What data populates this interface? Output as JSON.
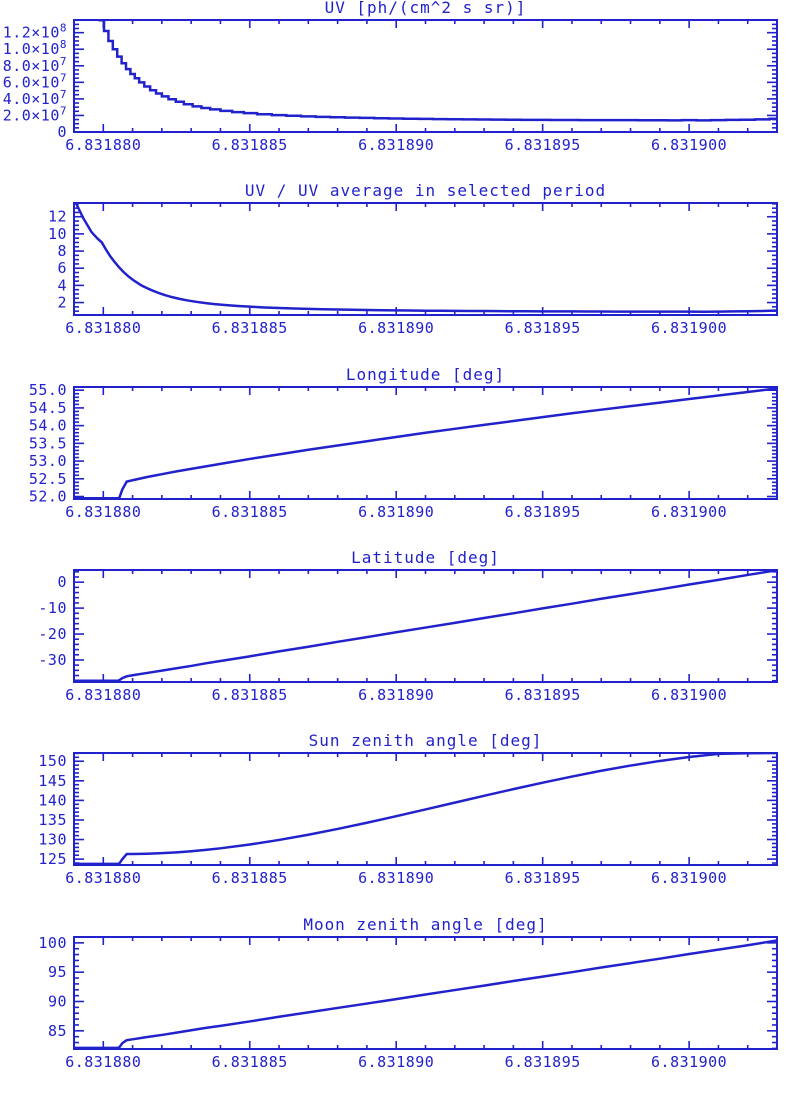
{
  "page": {
    "background": "#ffffff",
    "accent_color": "#2222cc"
  },
  "chart_data": [
    {
      "type": "line",
      "title": "UV [ph/(cm^2 s sr)]",
      "step": true,
      "xlim": [
        6.831879,
        6.831903
      ],
      "ylim": [
        0,
        135300000
      ],
      "x_major": {
        "values": [
          6.83188,
          6.831885,
          6.83189,
          6.831895,
          6.8319
        ],
        "labels": [
          "6.831880",
          "6.831885",
          "6.831890",
          "6.831895",
          "6.831900"
        ]
      },
      "x_minor_step": 1e-06,
      "y_major": {
        "values": [
          0,
          20000000,
          40000000,
          60000000,
          80000000,
          100000000,
          120000000
        ],
        "labels": [
          "0",
          "2.0×10^7",
          "4.0×10^7",
          "6.0×10^7",
          "8.0×10^7",
          "1.0×10^8",
          "1.2×10^8"
        ]
      },
      "y_minor_step": 5000000,
      "series": {
        "x": [
          6.831879,
          6.8318793,
          6.8318796,
          6.8318798,
          6.83187995,
          6.8318801,
          6.83188025,
          6.8318804,
          6.83188055,
          6.8318807,
          6.83188085,
          6.831881,
          6.83188115,
          6.8318813,
          6.8318815,
          6.8318817,
          6.8318819,
          6.8318821,
          6.83188235,
          6.8318826,
          6.8318829,
          6.8318832,
          6.8318835,
          6.8318838,
          6.8318842,
          6.8318846,
          6.831885,
          6.8318855,
          6.831886,
          6.8318865,
          6.831887,
          6.8318875,
          6.831888,
          6.8318885,
          6.831889,
          6.8318895,
          6.83189,
          6.8318905,
          6.831891,
          6.8318915,
          6.831892,
          6.8318925,
          6.831893,
          6.8318935,
          6.831894,
          6.8318945,
          6.831895,
          6.8318955,
          6.831896,
          6.8318965,
          6.831897,
          6.8318975,
          6.831898,
          6.8318985,
          6.831899,
          6.8318995,
          6.8319,
          6.8319005,
          6.831901,
          6.8319015,
          6.831902,
          6.8319025,
          6.831903
        ],
        "y": [
          211000000,
          179000000,
          153000000,
          142000000,
          135000000,
          122000000,
          110000000,
          100000000,
          91000000,
          83000000,
          76000000,
          70000000,
          65000000,
          60000000,
          55000000,
          50500000,
          46500000,
          43000000,
          39500000,
          36500000,
          33500000,
          31000000,
          29000000,
          27300000,
          25500000,
          24000000,
          22800000,
          21500000,
          20400000,
          19600000,
          18900000,
          18300000,
          17800000,
          17400000,
          17000000,
          16600000,
          16300000,
          16000000,
          15800000,
          15600000,
          15400000,
          15200000,
          15100000,
          15000000,
          14800000,
          14700000,
          14600000,
          14500000,
          14500000,
          14400000,
          14400000,
          14300000,
          14300000,
          14200000,
          14200000,
          14100000,
          14300000,
          14000000,
          14300000,
          14600000,
          14800000,
          15300000,
          16000000
        ]
      }
    },
    {
      "type": "line",
      "title": "UV / UV average in selected period",
      "step": false,
      "xlim": [
        6.831879,
        6.831903
      ],
      "ylim": [
        0.55,
        13.6
      ],
      "x_major": {
        "values": [
          6.83188,
          6.831885,
          6.83189,
          6.831895,
          6.8319
        ],
        "labels": [
          "6.831880",
          "6.831885",
          "6.831890",
          "6.831895",
          "6.831900"
        ]
      },
      "x_minor_step": 1e-06,
      "y_major": {
        "values": [
          2,
          4,
          6,
          8,
          10,
          12
        ],
        "labels": [
          "2",
          "4",
          "6",
          "8",
          "10",
          "12"
        ]
      },
      "y_minor_step": 0.5,
      "series": {
        "x": [
          6.831879,
          6.8318793,
          6.8318796,
          6.8318798,
          6.83187995,
          6.8318801,
          6.83188025,
          6.8318804,
          6.83188055,
          6.8318807,
          6.83188085,
          6.831881,
          6.83188115,
          6.8318813,
          6.8318815,
          6.8318817,
          6.8318819,
          6.8318821,
          6.83188235,
          6.8318826,
          6.8318829,
          6.8318832,
          6.8318835,
          6.8318838,
          6.8318842,
          6.8318846,
          6.831885,
          6.8318855,
          6.831886,
          6.8318865,
          6.831887,
          6.8318875,
          6.831888,
          6.8318885,
          6.831889,
          6.8318895,
          6.83189,
          6.8318905,
          6.831891,
          6.8318915,
          6.831892,
          6.8318925,
          6.831893,
          6.8318935,
          6.831894,
          6.8318945,
          6.831895,
          6.8318955,
          6.831896,
          6.8318965,
          6.831897,
          6.8318975,
          6.831898,
          6.8318985,
          6.831899,
          6.8318995,
          6.8319,
          6.8319005,
          6.831901,
          6.8319015,
          6.831902,
          6.8319025,
          6.831903
        ],
        "y": [
          14.07,
          11.93,
          10.2,
          9.47,
          9.0,
          8.13,
          7.33,
          6.67,
          6.07,
          5.53,
          5.07,
          4.67,
          4.33,
          4.0,
          3.67,
          3.37,
          3.1,
          2.87,
          2.63,
          2.43,
          2.23,
          2.07,
          1.93,
          1.82,
          1.7,
          1.6,
          1.52,
          1.43,
          1.36,
          1.31,
          1.26,
          1.22,
          1.19,
          1.16,
          1.13,
          1.11,
          1.09,
          1.07,
          1.05,
          1.04,
          1.03,
          1.01,
          1.01,
          1.0,
          0.99,
          0.98,
          0.97,
          0.97,
          0.97,
          0.96,
          0.96,
          0.95,
          0.95,
          0.95,
          0.95,
          0.94,
          0.95,
          0.93,
          0.95,
          0.97,
          0.99,
          1.02,
          1.07
        ]
      }
    },
    {
      "type": "line",
      "title": "Longitude [deg]",
      "step": false,
      "xlim": [
        6.831879,
        6.831903
      ],
      "ylim": [
        51.93,
        55.09
      ],
      "x_major": {
        "values": [
          6.83188,
          6.831885,
          6.83189,
          6.831895,
          6.8319
        ],
        "labels": [
          "6.831880",
          "6.831885",
          "6.831890",
          "6.831895",
          "6.831900"
        ]
      },
      "x_minor_step": 1e-06,
      "y_major": {
        "values": [
          52.0,
          52.5,
          53.0,
          53.5,
          54.0,
          54.5,
          55.0
        ],
        "labels": [
          "52.0",
          "52.5",
          "53.0",
          "53.5",
          "54.0",
          "54.5",
          "55.0"
        ]
      },
      "y_minor_step": 0.1,
      "series": {
        "x": [
          6.831879,
          6.8318805,
          6.83188055,
          6.83188065,
          6.8318808,
          6.831881,
          6.8318815,
          6.831882,
          6.8318825,
          6.831883,
          6.8318835,
          6.831884,
          6.831885,
          6.831886,
          6.831887,
          6.831888,
          6.831889,
          6.83189,
          6.831891,
          6.831892,
          6.831893,
          6.831894,
          6.831895,
          6.831896,
          6.831897,
          6.831898,
          6.831899,
          6.8319,
          6.831901,
          6.831902,
          6.831903
        ],
        "y": [
          51.95,
          51.95,
          51.97,
          52.2,
          52.42,
          52.46,
          52.55,
          52.63,
          52.71,
          52.78,
          52.85,
          52.92,
          53.06,
          53.19,
          53.32,
          53.44,
          53.56,
          53.68,
          53.8,
          53.91,
          54.02,
          54.13,
          54.24,
          54.35,
          54.45,
          54.55,
          54.65,
          54.75,
          54.85,
          54.95,
          55.05
        ]
      }
    },
    {
      "type": "line",
      "title": "Latitude [deg]",
      "step": false,
      "xlim": [
        6.831879,
        6.831903
      ],
      "ylim": [
        -38.5,
        4.7
      ],
      "x_major": {
        "values": [
          6.83188,
          6.831885,
          6.83189,
          6.831895,
          6.8319
        ],
        "labels": [
          "6.831880",
          "6.831885",
          "6.831890",
          "6.831895",
          "6.831900"
        ]
      },
      "x_minor_step": 1e-06,
      "y_major": {
        "values": [
          -30,
          -20,
          -10,
          0
        ],
        "labels": [
          "-30",
          "-20",
          "-10",
          "0"
        ]
      },
      "y_minor_step": 2,
      "series": {
        "x": [
          6.831879,
          6.8318805,
          6.83188055,
          6.83188065,
          6.8318808,
          6.831881,
          6.8318815,
          6.831882,
          6.8318825,
          6.831883,
          6.8318835,
          6.831884,
          6.831885,
          6.831886,
          6.831887,
          6.831888,
          6.831889,
          6.83189,
          6.831891,
          6.831892,
          6.831893,
          6.831894,
          6.831895,
          6.831896,
          6.831897,
          6.831898,
          6.831899,
          6.8319,
          6.831901,
          6.831902,
          6.831903
        ],
        "y": [
          -38.0,
          -38.0,
          -37.8,
          -37.0,
          -36.3,
          -35.9,
          -35.0,
          -34.1,
          -33.2,
          -32.3,
          -31.3,
          -30.4,
          -28.6,
          -26.7,
          -24.9,
          -23.0,
          -21.2,
          -19.3,
          -17.5,
          -15.7,
          -13.8,
          -12.0,
          -10.1,
          -8.3,
          -6.4,
          -4.6,
          -2.8,
          -0.9,
          0.9,
          2.8,
          4.6
        ]
      }
    },
    {
      "type": "line",
      "title": "Sun zenith angle [deg]",
      "step": false,
      "xlim": [
        6.831879,
        6.831903
      ],
      "ylim": [
        123.5,
        152.1
      ],
      "x_major": {
        "values": [
          6.83188,
          6.831885,
          6.83189,
          6.831895,
          6.8319
        ],
        "labels": [
          "6.831880",
          "6.831885",
          "6.831890",
          "6.831895",
          "6.831900"
        ]
      },
      "x_minor_step": 1e-06,
      "y_major": {
        "values": [
          125,
          130,
          135,
          140,
          145,
          150
        ],
        "labels": [
          "125",
          "130",
          "135",
          "140",
          "145",
          "150"
        ]
      },
      "y_minor_step": 1,
      "series": {
        "x": [
          6.831879,
          6.8318805,
          6.83188055,
          6.83188065,
          6.8318808,
          6.831881,
          6.8318815,
          6.831882,
          6.8318825,
          6.831883,
          6.8318835,
          6.831884,
          6.831885,
          6.831886,
          6.831887,
          6.831888,
          6.831889,
          6.83189,
          6.831891,
          6.831892,
          6.831893,
          6.831894,
          6.831895,
          6.831896,
          6.831897,
          6.831898,
          6.831899,
          6.8319,
          6.831901,
          6.831902,
          6.831903
        ],
        "y": [
          123.8,
          123.8,
          123.9,
          125.0,
          126.3,
          126.31,
          126.38,
          126.52,
          126.73,
          127.01,
          127.36,
          127.76,
          128.73,
          129.9,
          131.23,
          132.71,
          134.29,
          135.96,
          137.68,
          139.43,
          141.16,
          142.87,
          144.52,
          146.09,
          147.56,
          148.89,
          150.07,
          151.07,
          151.87,
          152.04,
          152.1
        ]
      }
    },
    {
      "type": "line",
      "title": "Moon zenith angle [deg]",
      "step": false,
      "xlim": [
        6.831879,
        6.831903
      ],
      "ylim": [
        81.9,
        101.0
      ],
      "x_major": {
        "values": [
          6.83188,
          6.831885,
          6.83189,
          6.831895,
          6.8319
        ],
        "labels": [
          "6.831880",
          "6.831885",
          "6.831890",
          "6.831895",
          "6.831900"
        ]
      },
      "x_minor_step": 1e-06,
      "y_major": {
        "values": [
          85,
          90,
          95,
          100
        ],
        "labels": [
          "85",
          "90",
          "95",
          "100"
        ]
      },
      "y_minor_step": 1,
      "series": {
        "x": [
          6.831879,
          6.8318805,
          6.83188055,
          6.83188065,
          6.8318808,
          6.831881,
          6.8318815,
          6.831882,
          6.8318825,
          6.831883,
          6.8318835,
          6.831884,
          6.831885,
          6.831886,
          6.831887,
          6.831888,
          6.831889,
          6.83189,
          6.831891,
          6.831892,
          6.831893,
          6.831894,
          6.831895,
          6.831896,
          6.831897,
          6.831898,
          6.831899,
          6.8319,
          6.831901,
          6.831902,
          6.831903
        ],
        "y": [
          82.1,
          82.1,
          82.2,
          82.9,
          83.4,
          83.55,
          83.95,
          84.3,
          84.7,
          85.1,
          85.5,
          85.85,
          86.6,
          87.4,
          88.15,
          88.9,
          89.65,
          90.4,
          91.2,
          91.95,
          92.7,
          93.5,
          94.25,
          95.0,
          95.8,
          96.55,
          97.3,
          98.1,
          98.85,
          99.6,
          100.4
        ]
      }
    }
  ]
}
